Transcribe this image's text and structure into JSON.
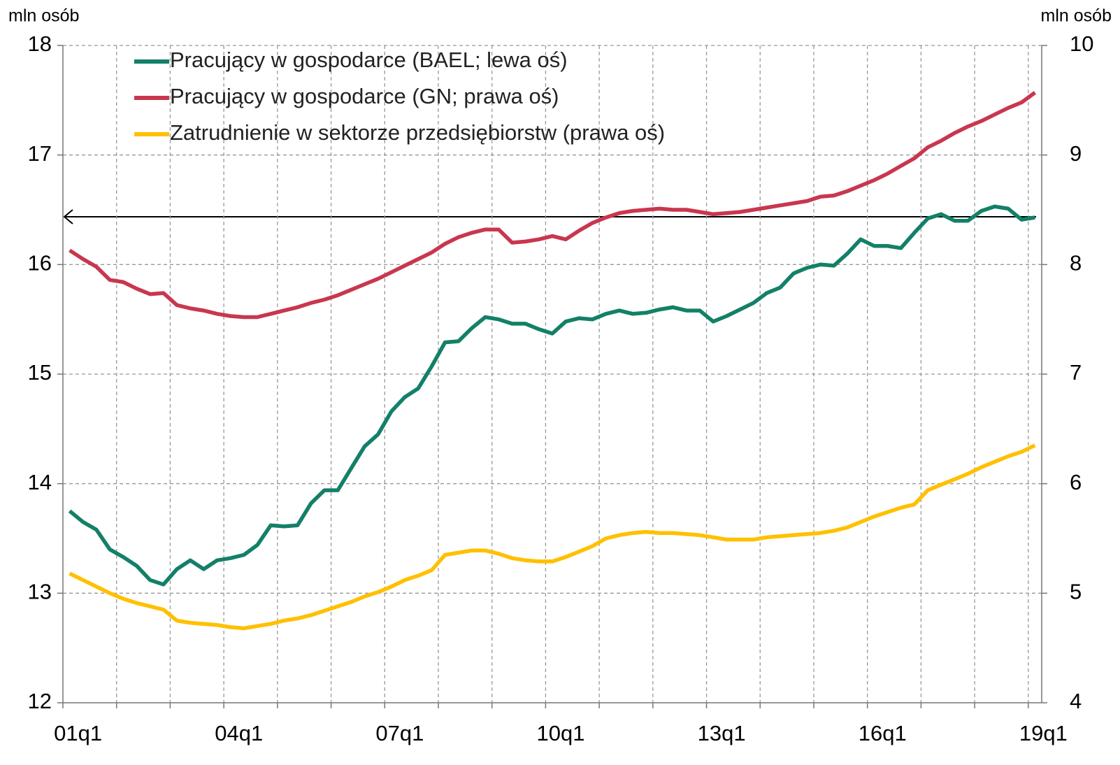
{
  "chart_data": {
    "type": "line",
    "y_label": "mln osób",
    "y2_label": "mln osób",
    "categories": [
      "01q1",
      null,
      null,
      null,
      null,
      null,
      null,
      null,
      null,
      null,
      null,
      null,
      "04q1",
      null,
      null,
      null,
      null,
      null,
      null,
      null,
      null,
      null,
      null,
      null,
      "07q1",
      null,
      null,
      null,
      null,
      null,
      null,
      null,
      null,
      null,
      null,
      null,
      "10q1",
      null,
      null,
      null,
      null,
      null,
      null,
      null,
      null,
      null,
      null,
      null,
      "13q1",
      null,
      null,
      null,
      null,
      null,
      null,
      null,
      null,
      null,
      null,
      null,
      "16q1",
      null,
      null,
      null,
      null,
      null,
      null,
      null,
      null,
      null,
      null,
      null,
      "19q1"
    ],
    "series": [
      {
        "name": "Pracujący w gospodarce (BAEL; lewa oś)",
        "color": "#138068",
        "axis": "y",
        "values": [
          13.75,
          13.65,
          13.58,
          13.4,
          13.33,
          13.25,
          13.12,
          13.08,
          13.22,
          13.3,
          13.22,
          13.3,
          13.32,
          13.35,
          13.44,
          13.62,
          13.61,
          13.62,
          13.82,
          13.94,
          13.94,
          14.14,
          14.34,
          14.45,
          14.66,
          14.79,
          14.87,
          15.07,
          15.29,
          15.3,
          15.42,
          15.52,
          15.5,
          15.46,
          15.46,
          15.41,
          15.37,
          15.48,
          15.51,
          15.5,
          15.55,
          15.58,
          15.55,
          15.56,
          15.59,
          15.61,
          15.58,
          15.58,
          15.48,
          15.53,
          15.59,
          15.65,
          15.74,
          15.79,
          15.92,
          15.97,
          16.0,
          15.99,
          16.1,
          16.23,
          16.17,
          16.17,
          16.15,
          16.29,
          16.42,
          16.46,
          16.4,
          16.4,
          16.49,
          16.53,
          16.51,
          16.41,
          16.43
        ]
      },
      {
        "name": "Pracujący w gospodarce (GN; prawa oś)",
        "color": "#c8374f",
        "axis": "y2",
        "values": [
          8.13,
          8.05,
          7.98,
          7.86,
          7.84,
          7.78,
          7.73,
          7.74,
          7.63,
          7.6,
          7.58,
          7.55,
          7.53,
          7.52,
          7.52,
          7.55,
          7.58,
          7.61,
          7.65,
          7.68,
          7.72,
          7.77,
          7.82,
          7.87,
          7.93,
          7.99,
          8.05,
          8.11,
          8.19,
          8.25,
          8.29,
          8.32,
          8.32,
          8.2,
          8.21,
          8.23,
          8.26,
          8.23,
          8.31,
          8.38,
          8.43,
          8.47,
          8.49,
          8.5,
          8.51,
          8.5,
          8.5,
          8.48,
          8.46,
          8.47,
          8.48,
          8.5,
          8.52,
          8.54,
          8.56,
          8.58,
          8.62,
          8.63,
          8.67,
          8.72,
          8.77,
          8.83,
          8.9,
          8.97,
          9.07,
          9.13,
          9.2,
          9.26,
          9.31,
          9.37,
          9.43,
          9.48,
          9.57
        ]
      },
      {
        "name": "Zatrudnienie w sektorze przedsiębiorstw (prawa oś)",
        "color": "#ffc000",
        "axis": "y2",
        "values": [
          5.18,
          5.12,
          5.06,
          5.0,
          4.95,
          4.91,
          4.88,
          4.85,
          4.75,
          4.73,
          4.72,
          4.71,
          4.69,
          4.68,
          4.7,
          4.72,
          4.75,
          4.77,
          4.8,
          4.84,
          4.88,
          4.92,
          4.97,
          5.01,
          5.06,
          5.12,
          5.16,
          5.21,
          5.35,
          5.37,
          5.39,
          5.39,
          5.36,
          5.32,
          5.3,
          5.29,
          5.29,
          5.33,
          5.38,
          5.43,
          5.5,
          5.53,
          5.55,
          5.56,
          5.55,
          5.55,
          5.54,
          5.53,
          5.51,
          5.49,
          5.49,
          5.49,
          5.51,
          5.52,
          5.53,
          5.54,
          5.55,
          5.57,
          5.6,
          5.65,
          5.7,
          5.74,
          5.78,
          5.81,
          5.94,
          5.99,
          6.04,
          6.09,
          6.15,
          6.2,
          6.25,
          6.29,
          6.35
        ]
      }
    ],
    "ylim": [
      12,
      18
    ],
    "yticks": [
      12,
      13,
      14,
      15,
      16,
      17,
      18
    ],
    "y2lim": [
      4,
      10
    ],
    "y2ticks": [
      4,
      5,
      6,
      7,
      8,
      9,
      10
    ],
    "grid": true,
    "legend": "upper left"
  }
}
